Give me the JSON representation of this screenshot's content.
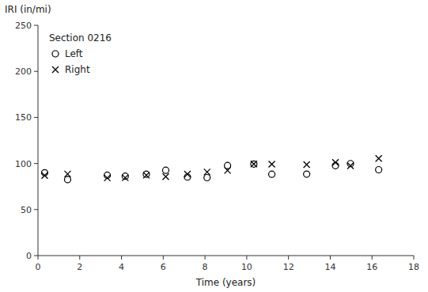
{
  "chart_data": {
    "type": "scatter",
    "legend_title": "Section 0216",
    "x_label": "Time (years)",
    "y_label": "IRI (in/mi)",
    "x": [
      0.32,
      1.42,
      3.32,
      4.18,
      5.19,
      6.12,
      7.16,
      8.1,
      9.08,
      10.34,
      11.2,
      12.87,
      14.25,
      14.97,
      16.32
    ],
    "series": [
      {
        "name": "Left",
        "color": "#000000",
        "marker": "circle",
        "values": [
          89.96,
          82.55,
          87.25,
          86.15,
          88.36,
          92.65,
          85.25,
          84.62,
          97.76,
          99.35,
          88.35,
          88.42,
          97.69,
          99.89,
          93.23
        ]
      },
      {
        "name": "Right",
        "color": "#000000",
        "marker": "x",
        "values": [
          87.04,
          88.62,
          84.27,
          84.51,
          87.28,
          85.68,
          88.44,
          90.73,
          92.48,
          99.4,
          99.18,
          98.82,
          101.15,
          97.44,
          105.42
        ]
      }
    ],
    "xlim": [
      0,
      18
    ],
    "ylim": [
      0,
      250
    ],
    "xticks": [
      0,
      2,
      4,
      6,
      8,
      10,
      12,
      14,
      16,
      18
    ],
    "yticks": [
      0,
      50,
      100,
      150,
      200,
      250
    ],
    "grid": false,
    "legend": "upper left"
  }
}
